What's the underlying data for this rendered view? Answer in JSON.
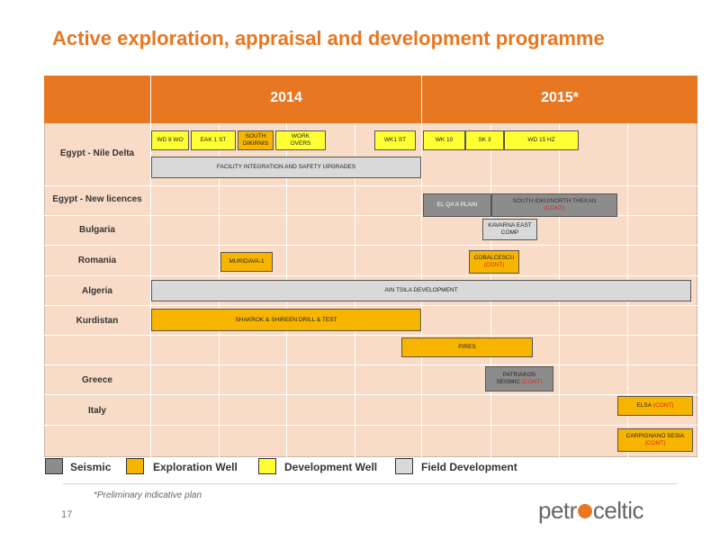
{
  "title": "Active exploration, appraisal and development programme",
  "years": [
    "2014",
    "2015*"
  ],
  "rows": [
    "Egypt - Nile Delta",
    "Egypt - New licences",
    "Bulgaria",
    "Romania",
    "Algeria",
    "Kurdistan",
    "Greece",
    "Italy"
  ],
  "bars": {
    "wd8wo": "WD 8 WO",
    "eak1st": "EAK 1 ST",
    "south_dikirnis_1": "SOUTH",
    "south_dikirnis_2": "DIKIRNIS",
    "workovers_1": "WORK",
    "workovers_2": "OVERS",
    "wk1st": "WK1 ST",
    "wk10": "WK 10",
    "sk3": "SK 3",
    "wd15hz": "WD 15 HZ",
    "facility": "FACILITY INTEGRATION AND SAFETY UPGRADES",
    "elqaa": "EL QA'A PLAIN",
    "south_idku": "SOUTH IDKU/NORTH THEKAN",
    "kavarna_1": "KAVARNA EAST",
    "kavarna_2": "COMP",
    "muridava": "MURIDAVA-1",
    "cobalcescu": "COBALCESCU",
    "ain_tsila": "AIN TSILA DEVELOPMENT",
    "shakrok": "SHAKROK & SHIREEN DRILL & TEST",
    "pires": "PIRES",
    "patriakos_1": "PATRIAKOS",
    "patriakos_2": "SEISMIC",
    "elsa": "ELSA",
    "carpignano": "CARPIGNANO SESIA",
    "cont": "(CONT)"
  },
  "legend": [
    "Seismic",
    "Exploration Well",
    "Development Well",
    "Field Development"
  ],
  "colors": {
    "accent": "#e87722",
    "seismic": "#8c8c8c",
    "exploration": "#f7b500",
    "development": "#ffff33",
    "field": "#d9d9d9"
  },
  "note": "*Preliminary indicative plan",
  "page_number": "17",
  "logo": {
    "left": "petr",
    "right": "celtic"
  }
}
